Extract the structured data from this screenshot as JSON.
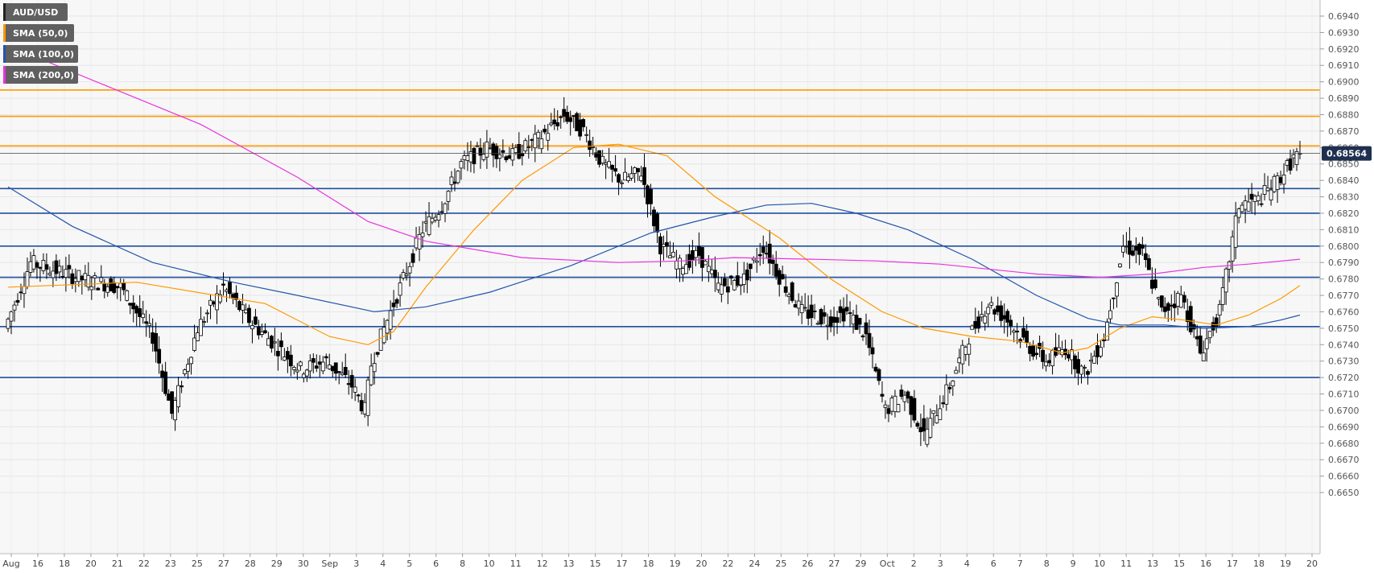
{
  "chart_data": {
    "type": "candlestick",
    "symbol": "AUD/USD",
    "title": "",
    "xlabel": "",
    "ylabel": "",
    "ylim": [
      0.6645,
      0.6945
    ],
    "grid": true,
    "legend_placement": "top-left",
    "y_ticks": [
      "0.6650",
      "0.6660",
      "0.6670",
      "0.6680",
      "0.6690",
      "0.6700",
      "0.6710",
      "0.6720",
      "0.6730",
      "0.6740",
      "0.6750",
      "0.6760",
      "0.6770",
      "0.6780",
      "0.6790",
      "0.6800",
      "0.6810",
      "0.6820",
      "0.6830",
      "0.6840",
      "0.6850",
      "0.6860",
      "0.6870",
      "0.6880",
      "0.6890",
      "0.6900",
      "0.6910",
      "0.6920",
      "0.6930",
      "0.6940"
    ],
    "x_ticks": [
      "Aug",
      "16",
      "18",
      "20",
      "21",
      "22",
      "23",
      "25",
      "27",
      "28",
      "29",
      "30",
      "Sep",
      "3",
      "4",
      "5",
      "6",
      "8",
      "10",
      "11",
      "12",
      "13",
      "15",
      "17",
      "18",
      "19",
      "20",
      "22",
      "24",
      "25",
      "26",
      "27",
      "29",
      "Oct",
      "2",
      "3",
      "4",
      "6",
      "7",
      "8",
      "9",
      "10",
      "11",
      "13",
      "15",
      "16",
      "17",
      "18",
      "19",
      "20"
    ],
    "legend": [
      {
        "label": "AUD/USD",
        "color": "#222222"
      },
      {
        "label": "SMA (50,0)",
        "color": "#ff9900"
      },
      {
        "label": "SMA (100,0)",
        "color": "#2255aa"
      },
      {
        "label": "SMA (200,0)",
        "color": "#e832e0"
      }
    ],
    "current_price": {
      "label": "0.68564",
      "value": 0.68564
    },
    "horizontal_levels": [
      {
        "value": 0.6895,
        "color": "#ff9900"
      },
      {
        "value": 0.6879,
        "color": "#ff9900"
      },
      {
        "value": 0.6861,
        "color": "#ff9900"
      },
      {
        "value": 0.6835,
        "color": "#1f4fa0"
      },
      {
        "value": 0.682,
        "color": "#1f4fa0"
      },
      {
        "value": 0.68,
        "color": "#1f4fa0"
      },
      {
        "value": 0.6781,
        "color": "#1f4fa0"
      },
      {
        "value": 0.6751,
        "color": "#1f4fa0"
      },
      {
        "value": 0.672,
        "color": "#1f4fa0"
      }
    ],
    "price_path": [
      [
        0,
        0.675
      ],
      [
        8,
        0.679
      ],
      [
        16,
        0.6785
      ],
      [
        24,
        0.678
      ],
      [
        36,
        0.6775
      ],
      [
        46,
        0.6745
      ],
      [
        52,
        0.6698
      ],
      [
        60,
        0.675
      ],
      [
        68,
        0.6775
      ],
      [
        76,
        0.6755
      ],
      [
        84,
        0.674
      ],
      [
        92,
        0.6725
      ],
      [
        100,
        0.673
      ],
      [
        108,
        0.6715
      ],
      [
        112,
        0.67
      ],
      [
        114,
        0.6728
      ],
      [
        118,
        0.675
      ],
      [
        124,
        0.678
      ],
      [
        130,
        0.681
      ],
      [
        136,
        0.6825
      ],
      [
        142,
        0.685
      ],
      [
        150,
        0.686
      ],
      [
        158,
        0.6855
      ],
      [
        166,
        0.6865
      ],
      [
        174,
        0.688
      ],
      [
        180,
        0.687
      ],
      [
        186,
        0.685
      ],
      [
        192,
        0.684
      ],
      [
        198,
        0.6845
      ],
      [
        204,
        0.68
      ],
      [
        210,
        0.6788
      ],
      [
        216,
        0.6795
      ],
      [
        222,
        0.6775
      ],
      [
        230,
        0.678
      ],
      [
        236,
        0.68
      ],
      [
        242,
        0.6778
      ],
      [
        248,
        0.676
      ],
      [
        256,
        0.6755
      ],
      [
        262,
        0.676
      ],
      [
        268,
        0.6745
      ],
      [
        274,
        0.67
      ],
      [
        280,
        0.671
      ],
      [
        286,
        0.6685
      ],
      [
        294,
        0.6715
      ],
      [
        300,
        0.6745
      ],
      [
        306,
        0.6765
      ],
      [
        312,
        0.6755
      ],
      [
        318,
        0.674
      ],
      [
        324,
        0.673
      ],
      [
        330,
        0.6738
      ],
      [
        336,
        0.6722
      ],
      [
        342,
        0.6745
      ],
      [
        348,
        0.68
      ],
      [
        354,
        0.6795
      ],
      [
        360,
        0.676
      ],
      [
        366,
        0.677
      ],
      [
        372,
        0.6735
      ],
      [
        378,
        0.676
      ],
      [
        384,
        0.6825
      ],
      [
        390,
        0.6828
      ],
      [
        396,
        0.684
      ],
      [
        402,
        0.6856
      ]
    ],
    "sma50": [
      [
        0,
        0.6775
      ],
      [
        40,
        0.6778
      ],
      [
        80,
        0.6765
      ],
      [
        100,
        0.6745
      ],
      [
        112,
        0.674
      ],
      [
        120,
        0.6748
      ],
      [
        130,
        0.6775
      ],
      [
        145,
        0.681
      ],
      [
        160,
        0.684
      ],
      [
        176,
        0.686
      ],
      [
        190,
        0.6862
      ],
      [
        205,
        0.6855
      ],
      [
        220,
        0.683
      ],
      [
        240,
        0.6805
      ],
      [
        256,
        0.678
      ],
      [
        272,
        0.676
      ],
      [
        285,
        0.675
      ],
      [
        300,
        0.6745
      ],
      [
        315,
        0.6742
      ],
      [
        328,
        0.6735
      ],
      [
        336,
        0.6738
      ],
      [
        346,
        0.675
      ],
      [
        356,
        0.6757
      ],
      [
        366,
        0.6755
      ],
      [
        376,
        0.6752
      ],
      [
        386,
        0.6758
      ],
      [
        396,
        0.6768
      ],
      [
        402,
        0.6776
      ]
    ],
    "sma100": [
      [
        0,
        0.6836
      ],
      [
        20,
        0.6812
      ],
      [
        45,
        0.679
      ],
      [
        70,
        0.6778
      ],
      [
        90,
        0.677
      ],
      [
        114,
        0.676
      ],
      [
        130,
        0.6763
      ],
      [
        150,
        0.6772
      ],
      [
        175,
        0.6788
      ],
      [
        200,
        0.6808
      ],
      [
        220,
        0.6818
      ],
      [
        236,
        0.6825
      ],
      [
        250,
        0.6826
      ],
      [
        264,
        0.682
      ],
      [
        280,
        0.681
      ],
      [
        300,
        0.6792
      ],
      [
        320,
        0.677
      ],
      [
        336,
        0.6756
      ],
      [
        346,
        0.6752
      ],
      [
        360,
        0.6752
      ],
      [
        372,
        0.675
      ],
      [
        386,
        0.6751
      ],
      [
        396,
        0.6755
      ],
      [
        402,
        0.6758
      ]
    ],
    "sma200": [
      [
        0,
        0.6922
      ],
      [
        30,
        0.6898
      ],
      [
        60,
        0.6874
      ],
      [
        90,
        0.6842
      ],
      [
        112,
        0.6815
      ],
      [
        130,
        0.6803
      ],
      [
        160,
        0.6793
      ],
      [
        190,
        0.679
      ],
      [
        210,
        0.6791
      ],
      [
        226,
        0.6793
      ],
      [
        250,
        0.6792
      ],
      [
        270,
        0.6791
      ],
      [
        290,
        0.6789
      ],
      [
        320,
        0.6783
      ],
      [
        340,
        0.6781
      ],
      [
        356,
        0.6783
      ],
      [
        372,
        0.6787
      ],
      [
        386,
        0.6789
      ],
      [
        402,
        0.6792
      ]
    ]
  }
}
